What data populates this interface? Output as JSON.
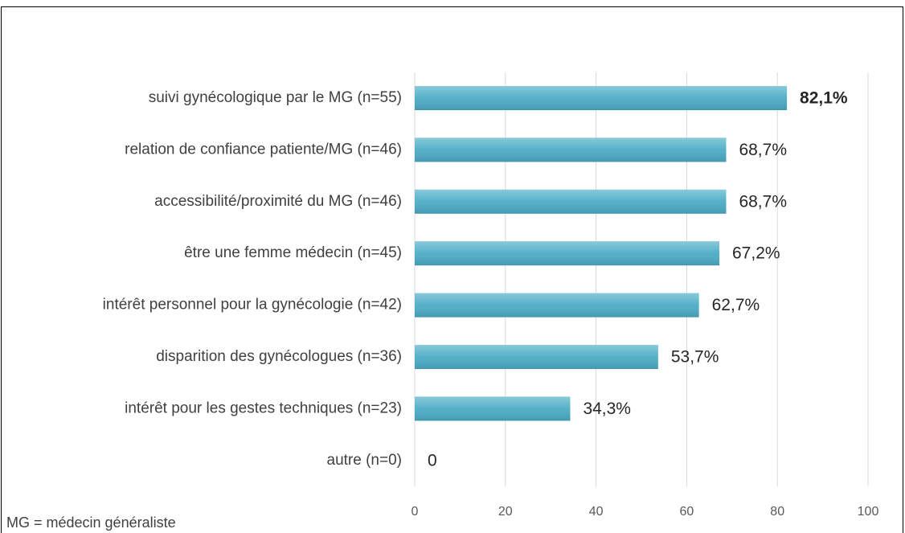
{
  "chart_data": {
    "type": "barh",
    "categories": [
      "suivi gynécologique par le MG (n=55)",
      "relation de confiance patiente/MG (n=46)",
      "accessibilité/proximité du MG (n=46)",
      "être une femme médecin (n=45)",
      "intérêt personnel pour la gynécologie (n=42)",
      "disparition des gynécologues (n=36)",
      "intérêt pour les gestes techniques (n=23)",
      "autre (n=0)"
    ],
    "values": [
      82.1,
      68.7,
      68.7,
      67.2,
      62.7,
      53.7,
      34.3,
      0
    ],
    "value_labels": [
      "82,1%",
      "68,7%",
      "68,7%",
      "67,2%",
      "62,7%",
      "53,7%",
      "34,3%",
      "0"
    ],
    "color": "#4bacc6",
    "xlim": [
      0,
      100
    ],
    "xticks": [
      0,
      20,
      40,
      60,
      80,
      100
    ],
    "grid": true,
    "annotation": "MG = médecin généraliste"
  }
}
